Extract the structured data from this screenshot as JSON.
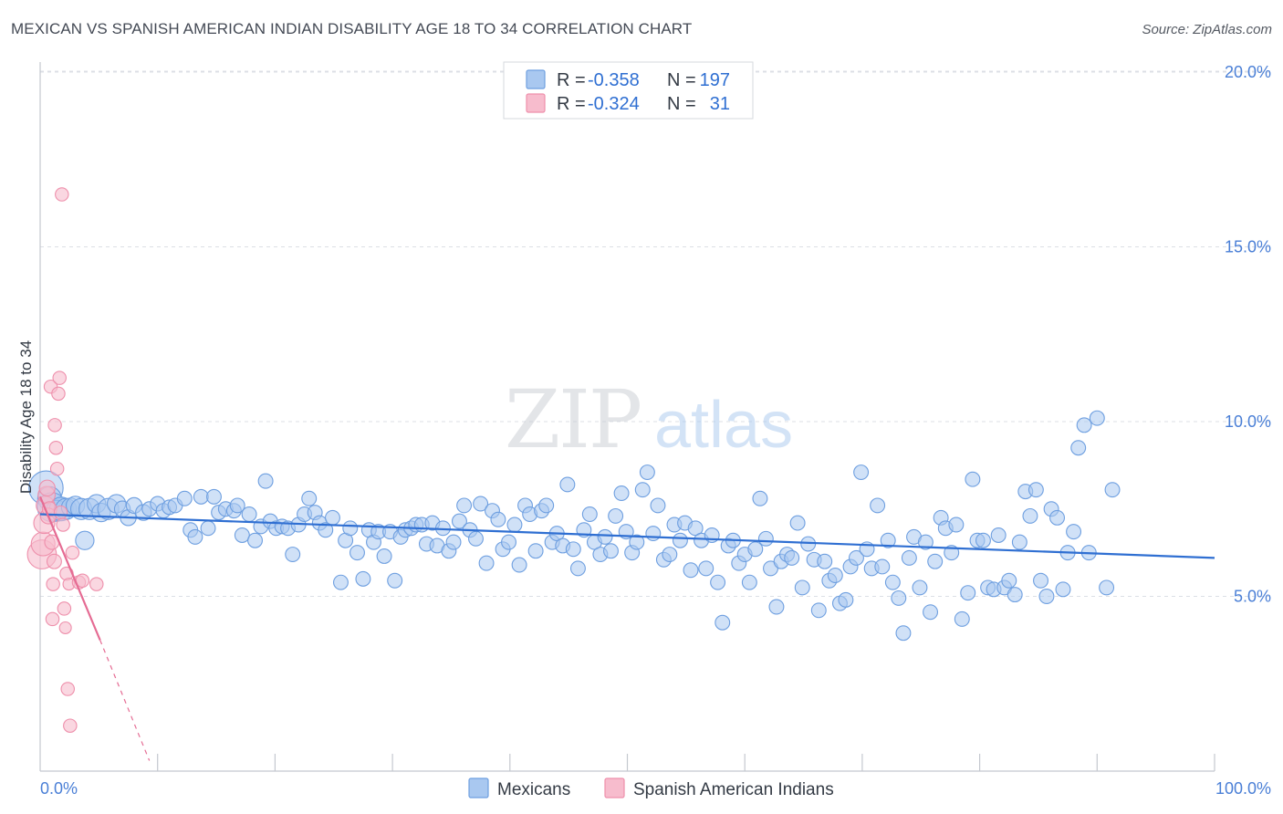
{
  "chart_data": {
    "type": "scatter",
    "title": "MEXICAN VS SPANISH AMERICAN INDIAN DISABILITY AGE 18 TO 34 CORRELATION CHART",
    "source": "Source: ZipAtlas.com",
    "xlabel": "",
    "ylabel": "Disability Age 18 to 34",
    "xlim": [
      0,
      100
    ],
    "ylim": [
      0,
      20.5
    ],
    "x_tick_labels": [
      "0.0%",
      "100.0%"
    ],
    "y_ticks": [
      5,
      10,
      15,
      20
    ],
    "y_tick_labels": [
      "5.0%",
      "10.0%",
      "15.0%",
      "20.0%"
    ],
    "grid": true,
    "watermark": {
      "zip": "ZIP",
      "atlas": "atlas"
    },
    "colors": {
      "mexicans_fill": "#a9c8f0",
      "mexicans_stroke": "#6e9fe0",
      "mexicans_line": "#2f6fd2",
      "sai_fill": "#f7bccd",
      "sai_stroke": "#ee8fab",
      "sai_line": "#e56b93",
      "tick_label": "#4a7fd6",
      "grid": "#dcdfe5"
    },
    "legend": {
      "r_label": "R =",
      "n_label": "N =",
      "entries": [
        {
          "name": "Mexicans",
          "r": "-0.358",
          "n": "197"
        },
        {
          "name": "Spanish American Indians",
          "r": "-0.324",
          "n": "31"
        }
      ]
    },
    "series": [
      {
        "name": "Mexicans",
        "trend": {
          "x0": 0,
          "y0": 7.35,
          "x1": 100,
          "y1": 6.1
        },
        "points": [
          [
            0.5,
            8.1,
            26
          ],
          [
            0.8,
            7.8,
            18
          ],
          [
            1.0,
            7.55,
            22
          ],
          [
            1.4,
            7.45,
            16
          ],
          [
            1.8,
            7.5,
            18
          ],
          [
            2.2,
            7.5,
            16
          ],
          [
            2.6,
            7.55,
            14
          ],
          [
            3.0,
            7.6,
            14
          ],
          [
            3.5,
            7.5,
            16
          ],
          [
            3.8,
            6.6,
            14
          ],
          [
            4.2,
            7.5,
            16
          ],
          [
            4.8,
            7.65,
            14
          ],
          [
            5.2,
            7.4,
            14
          ],
          [
            5.8,
            7.5,
            16
          ],
          [
            6.5,
            7.65,
            14
          ],
          [
            7.0,
            7.5,
            12
          ],
          [
            7.5,
            7.25,
            12
          ],
          [
            8.0,
            7.6,
            12
          ],
          [
            8.8,
            7.4,
            12
          ],
          [
            9.3,
            7.5,
            11
          ],
          [
            10.0,
            7.65,
            11
          ],
          [
            10.5,
            7.45,
            11
          ],
          [
            11.0,
            7.55,
            11
          ],
          [
            11.5,
            7.6,
            11
          ],
          [
            12.3,
            7.8,
            11
          ],
          [
            12.8,
            6.9,
            11
          ],
          [
            13.2,
            6.7,
            11
          ],
          [
            13.7,
            7.85,
            11
          ],
          [
            14.3,
            6.95,
            11
          ],
          [
            14.8,
            7.85,
            11
          ],
          [
            15.2,
            7.4,
            11
          ],
          [
            15.8,
            7.5,
            11
          ],
          [
            16.5,
            7.45,
            11
          ],
          [
            16.8,
            7.6,
            11
          ],
          [
            17.2,
            6.75,
            11
          ],
          [
            17.8,
            7.35,
            11
          ],
          [
            18.3,
            6.6,
            11
          ],
          [
            18.8,
            7.0,
            11
          ],
          [
            19.2,
            8.3,
            11
          ],
          [
            19.6,
            7.15,
            11
          ],
          [
            20.1,
            6.95,
            11
          ],
          [
            20.6,
            7.0,
            11
          ],
          [
            21.1,
            6.95,
            11
          ],
          [
            21.5,
            6.2,
            11
          ],
          [
            22.0,
            7.05,
            11
          ],
          [
            22.5,
            7.35,
            11
          ],
          [
            22.9,
            7.8,
            11
          ],
          [
            23.4,
            7.4,
            11
          ],
          [
            23.8,
            7.1,
            11
          ],
          [
            24.3,
            6.9,
            11
          ],
          [
            24.9,
            7.25,
            11
          ],
          [
            25.6,
            5.4,
            11
          ],
          [
            26.0,
            6.6,
            11
          ],
          [
            26.4,
            6.95,
            11
          ],
          [
            27.0,
            6.25,
            11
          ],
          [
            27.5,
            5.5,
            11
          ],
          [
            28.0,
            6.9,
            11
          ],
          [
            28.4,
            6.55,
            11
          ],
          [
            28.8,
            6.85,
            11
          ],
          [
            29.3,
            6.15,
            11
          ],
          [
            29.8,
            6.85,
            11
          ],
          [
            30.2,
            5.45,
            11
          ],
          [
            30.7,
            6.7,
            11
          ],
          [
            31.1,
            6.9,
            11
          ],
          [
            31.6,
            6.95,
            11
          ],
          [
            32.0,
            7.05,
            11
          ],
          [
            32.5,
            7.05,
            11
          ],
          [
            32.9,
            6.5,
            11
          ],
          [
            33.4,
            7.1,
            11
          ],
          [
            33.8,
            6.45,
            11
          ],
          [
            34.3,
            6.95,
            11
          ],
          [
            34.8,
            6.3,
            11
          ],
          [
            35.2,
            6.55,
            11
          ],
          [
            35.7,
            7.15,
            11
          ],
          [
            36.1,
            7.6,
            11
          ],
          [
            36.6,
            6.9,
            11
          ],
          [
            37.1,
            6.65,
            11
          ],
          [
            37.5,
            7.65,
            11
          ],
          [
            38.0,
            5.95,
            11
          ],
          [
            38.5,
            7.45,
            11
          ],
          [
            39.0,
            7.2,
            11
          ],
          [
            39.4,
            6.35,
            11
          ],
          [
            39.9,
            6.55,
            11
          ],
          [
            40.4,
            7.05,
            11
          ],
          [
            40.8,
            5.9,
            11
          ],
          [
            41.3,
            7.6,
            11
          ],
          [
            41.7,
            7.35,
            11
          ],
          [
            42.2,
            6.3,
            11
          ],
          [
            42.7,
            7.45,
            11
          ],
          [
            43.1,
            7.6,
            11
          ],
          [
            43.6,
            6.55,
            11
          ],
          [
            44.0,
            6.8,
            11
          ],
          [
            44.5,
            6.45,
            11
          ],
          [
            44.9,
            8.2,
            11
          ],
          [
            45.4,
            6.35,
            11
          ],
          [
            45.8,
            5.8,
            11
          ],
          [
            46.3,
            6.9,
            11
          ],
          [
            46.8,
            7.35,
            11
          ],
          [
            47.2,
            6.55,
            11
          ],
          [
            47.7,
            6.2,
            11
          ],
          [
            48.1,
            6.7,
            11
          ],
          [
            48.6,
            6.3,
            11
          ],
          [
            49.0,
            7.3,
            11
          ],
          [
            49.5,
            7.95,
            11
          ],
          [
            49.9,
            6.85,
            11
          ],
          [
            50.4,
            6.25,
            11
          ],
          [
            50.8,
            6.55,
            11
          ],
          [
            51.3,
            8.05,
            11
          ],
          [
            51.7,
            8.55,
            11
          ],
          [
            52.2,
            6.8,
            11
          ],
          [
            52.6,
            7.6,
            11
          ],
          [
            53.1,
            6.05,
            11
          ],
          [
            53.6,
            6.2,
            11
          ],
          [
            54.0,
            7.05,
            11
          ],
          [
            54.5,
            6.6,
            11
          ],
          [
            54.9,
            7.1,
            11
          ],
          [
            55.4,
            5.75,
            11
          ],
          [
            55.8,
            6.95,
            11
          ],
          [
            56.3,
            6.6,
            11
          ],
          [
            56.7,
            5.8,
            11
          ],
          [
            57.2,
            6.75,
            11
          ],
          [
            57.7,
            5.4,
            11
          ],
          [
            58.1,
            4.25,
            11
          ],
          [
            58.6,
            6.45,
            11
          ],
          [
            59.0,
            6.6,
            11
          ],
          [
            59.5,
            5.95,
            11
          ],
          [
            60.0,
            6.2,
            11
          ],
          [
            60.4,
            5.4,
            11
          ],
          [
            60.9,
            6.35,
            11
          ],
          [
            61.3,
            7.8,
            11
          ],
          [
            61.8,
            6.65,
            11
          ],
          [
            62.2,
            5.8,
            11
          ],
          [
            62.7,
            4.7,
            11
          ],
          [
            63.1,
            6.0,
            11
          ],
          [
            63.6,
            6.2,
            11
          ],
          [
            64.0,
            6.1,
            11
          ],
          [
            64.5,
            7.1,
            11
          ],
          [
            64.9,
            5.25,
            11
          ],
          [
            65.4,
            6.5,
            11
          ],
          [
            65.9,
            6.05,
            11
          ],
          [
            66.3,
            4.6,
            11
          ],
          [
            66.8,
            6.0,
            11
          ],
          [
            67.2,
            5.45,
            11
          ],
          [
            67.7,
            5.6,
            11
          ],
          [
            68.1,
            4.8,
            11
          ],
          [
            68.6,
            4.9,
            11
          ],
          [
            69.0,
            5.85,
            11
          ],
          [
            69.5,
            6.1,
            11
          ],
          [
            69.9,
            8.55,
            11
          ],
          [
            70.4,
            6.35,
            11
          ],
          [
            70.8,
            5.8,
            11
          ],
          [
            71.3,
            7.6,
            11
          ],
          [
            71.7,
            5.85,
            11
          ],
          [
            72.2,
            6.6,
            11
          ],
          [
            72.6,
            5.4,
            11
          ],
          [
            73.1,
            4.95,
            11
          ],
          [
            73.5,
            3.95,
            11
          ],
          [
            74.0,
            6.1,
            11
          ],
          [
            74.4,
            6.7,
            11
          ],
          [
            74.9,
            5.25,
            11
          ],
          [
            75.4,
            6.55,
            11
          ],
          [
            75.8,
            4.55,
            11
          ],
          [
            76.2,
            6.0,
            11
          ],
          [
            76.7,
            7.25,
            11
          ],
          [
            77.1,
            6.95,
            11
          ],
          [
            77.6,
            6.25,
            11
          ],
          [
            78.0,
            7.05,
            11
          ],
          [
            78.5,
            4.35,
            11
          ],
          [
            79.0,
            5.1,
            11
          ],
          [
            79.4,
            8.35,
            11
          ],
          [
            79.8,
            6.6,
            11
          ],
          [
            80.3,
            6.6,
            11
          ],
          [
            80.7,
            5.25,
            11
          ],
          [
            81.2,
            5.2,
            11
          ],
          [
            81.6,
            6.75,
            11
          ],
          [
            82.1,
            5.25,
            11
          ],
          [
            82.5,
            5.45,
            11
          ],
          [
            83.0,
            5.05,
            11
          ],
          [
            83.4,
            6.55,
            11
          ],
          [
            83.9,
            8.0,
            11
          ],
          [
            84.3,
            7.3,
            11
          ],
          [
            84.8,
            8.05,
            11
          ],
          [
            85.2,
            5.45,
            11
          ],
          [
            85.7,
            5.0,
            11
          ],
          [
            86.1,
            7.5,
            11
          ],
          [
            86.6,
            7.25,
            11
          ],
          [
            87.1,
            5.2,
            11
          ],
          [
            87.5,
            6.25,
            11
          ],
          [
            88.0,
            6.85,
            11
          ],
          [
            88.4,
            9.25,
            11
          ],
          [
            88.9,
            9.9,
            11
          ],
          [
            89.3,
            6.25,
            11
          ],
          [
            90.0,
            10.1,
            11
          ],
          [
            90.8,
            5.25,
            11
          ],
          [
            91.3,
            8.05,
            11
          ]
        ]
      },
      {
        "name": "Spanish American Indians",
        "trend": {
          "x0": 0,
          "y0": 7.85,
          "x1": 5.1,
          "y1": 3.75,
          "dash_to_x": 9.3,
          "dash_to_y": 0.3
        },
        "points": [
          [
            0.15,
            6.2,
            22
          ],
          [
            0.25,
            6.5,
            18
          ],
          [
            0.35,
            7.1,
            16
          ],
          [
            0.45,
            7.6,
            14
          ],
          [
            0.55,
            7.9,
            13
          ],
          [
            0.6,
            8.1,
            12
          ],
          [
            0.7,
            7.3,
            12
          ],
          [
            0.8,
            7.5,
            11
          ],
          [
            0.9,
            11.0,
            10
          ],
          [
            1.0,
            6.55,
            11
          ],
          [
            1.05,
            4.35,
            10
          ],
          [
            1.1,
            5.35,
            10
          ],
          [
            1.2,
            6.0,
            11
          ],
          [
            1.25,
            9.9,
            10
          ],
          [
            1.35,
            9.25,
            10
          ],
          [
            1.45,
            8.65,
            10
          ],
          [
            1.55,
            10.8,
            10
          ],
          [
            1.65,
            11.25,
            10
          ],
          [
            1.75,
            7.4,
            10
          ],
          [
            1.85,
            16.5,
            10
          ],
          [
            1.95,
            7.05,
            10
          ],
          [
            2.05,
            4.65,
            10
          ],
          [
            2.15,
            4.1,
            9
          ],
          [
            2.25,
            5.65,
            10
          ],
          [
            2.35,
            2.35,
            10
          ],
          [
            2.45,
            5.35,
            9
          ],
          [
            2.55,
            1.3,
            10
          ],
          [
            2.75,
            6.25,
            10
          ],
          [
            3.3,
            5.4,
            10
          ],
          [
            3.6,
            5.45,
            10
          ],
          [
            4.8,
            5.35,
            10
          ]
        ]
      }
    ]
  }
}
